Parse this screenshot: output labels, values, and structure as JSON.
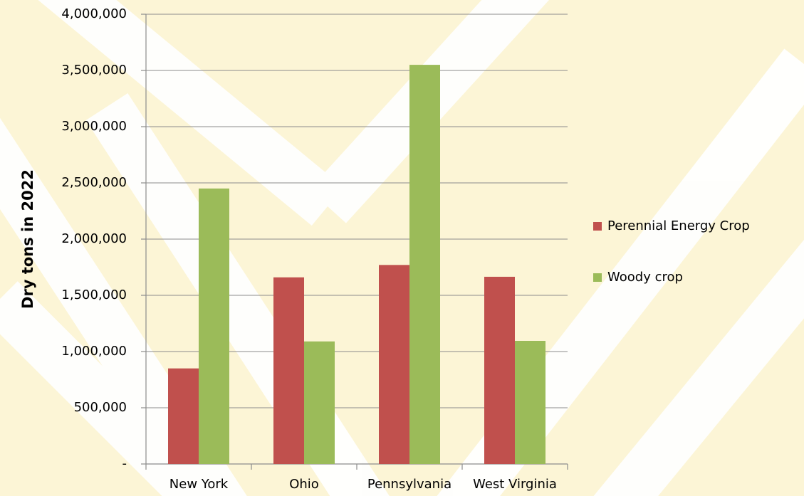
{
  "chart_data": {
    "type": "bar",
    "y_label": "Dry tons in 2022",
    "categories": [
      "New York",
      "Ohio",
      "Pennsylvania",
      "West Virginia"
    ],
    "series": [
      {
        "name": "Perennial Energy Crop",
        "color": "#c0504d",
        "values": [
          850000,
          1660000,
          1770000,
          1665000
        ]
      },
      {
        "name": "Woody crop",
        "color": "#9bbb59",
        "values": [
          2450000,
          1090000,
          3550000,
          1095000
        ]
      }
    ],
    "ylim": [
      0,
      4000000
    ],
    "yticks": [
      {
        "value": 0,
        "label": "-"
      },
      {
        "value": 500000,
        "label": "500,000"
      },
      {
        "value": 1000000,
        "label": "1,000,000"
      },
      {
        "value": 1500000,
        "label": "1,500,000"
      },
      {
        "value": 2000000,
        "label": "2,000,000"
      },
      {
        "value": 2500000,
        "label": "2,500,000"
      },
      {
        "value": 3000000,
        "label": "3,000,000"
      },
      {
        "value": 3500000,
        "label": "3,500,000"
      },
      {
        "value": 4000000,
        "label": "4,000,000"
      }
    ],
    "grid": true,
    "legend": "right"
  }
}
